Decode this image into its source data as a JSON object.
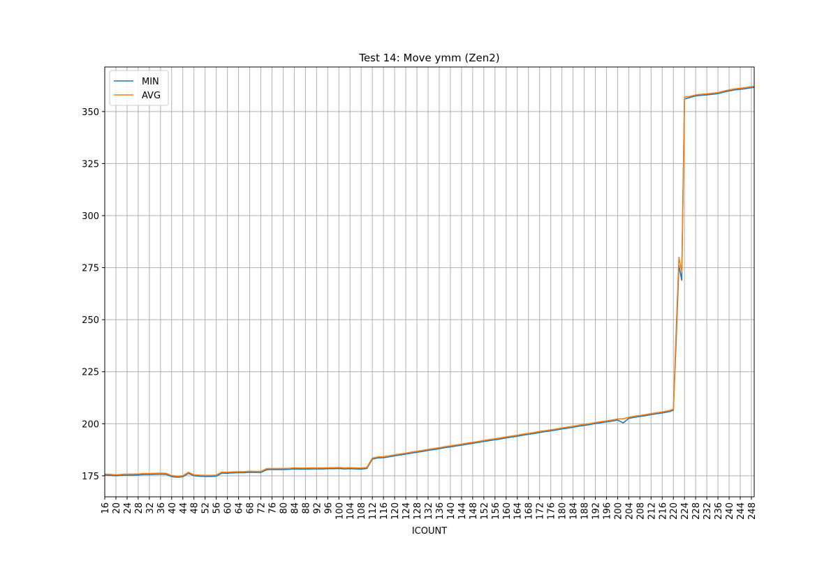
{
  "chart_data": {
    "type": "line",
    "title": "Test 14: Move ymm (Zen2)",
    "xlabel": "ICOUNT",
    "x": [
      16,
      18,
      20,
      22,
      24,
      26,
      28,
      30,
      32,
      34,
      36,
      38,
      40,
      42,
      44,
      46,
      48,
      50,
      52,
      54,
      56,
      58,
      60,
      62,
      64,
      66,
      68,
      70,
      72,
      74,
      76,
      78,
      80,
      82,
      84,
      86,
      88,
      90,
      92,
      94,
      96,
      98,
      100,
      102,
      104,
      106,
      108,
      110,
      112,
      114,
      116,
      118,
      120,
      122,
      124,
      126,
      128,
      130,
      132,
      134,
      136,
      138,
      140,
      142,
      144,
      146,
      148,
      150,
      152,
      154,
      156,
      158,
      160,
      162,
      164,
      166,
      168,
      170,
      172,
      174,
      176,
      178,
      180,
      182,
      184,
      186,
      188,
      190,
      192,
      194,
      196,
      198,
      200,
      202,
      204,
      206,
      208,
      210,
      212,
      214,
      216,
      218,
      219,
      220,
      221,
      222,
      223,
      224,
      226,
      228,
      230,
      232,
      234,
      236,
      238,
      240,
      242,
      244,
      246,
      248,
      249
    ],
    "series": [
      {
        "name": "MIN",
        "color": "#1f77b4",
        "values": [
          175.3,
          175.2,
          175.0,
          175.2,
          175.3,
          175.3,
          175.4,
          175.6,
          175.6,
          175.7,
          175.8,
          175.7,
          174.6,
          174.3,
          174.5,
          176.2,
          175.0,
          174.8,
          174.7,
          174.7,
          174.8,
          176.3,
          176.2,
          176.4,
          176.5,
          176.5,
          176.7,
          176.6,
          176.6,
          177.9,
          178.0,
          178.0,
          178.0,
          178.1,
          178.3,
          178.2,
          178.2,
          178.3,
          178.3,
          178.3,
          178.4,
          178.4,
          178.5,
          178.3,
          178.4,
          178.3,
          178.2,
          178.5,
          183.0,
          183.6,
          183.7,
          184.1,
          184.6,
          185.0,
          185.4,
          185.9,
          186.3,
          186.7,
          187.2,
          187.6,
          188.0,
          188.5,
          188.9,
          189.3,
          189.7,
          190.2,
          190.6,
          191.0,
          191.5,
          191.9,
          192.3,
          192.7,
          193.2,
          193.6,
          194.0,
          194.5,
          194.9,
          195.3,
          195.8,
          196.2,
          196.6,
          197.0,
          197.5,
          197.9,
          198.3,
          198.8,
          199.2,
          199.6,
          200.1,
          200.5,
          200.9,
          201.3,
          201.8,
          200.4,
          202.6,
          203.1,
          203.5,
          203.9,
          204.4,
          204.8,
          205.2,
          205.7,
          206.0,
          206.5,
          240.0,
          276.0,
          269.0,
          356.0,
          356.8,
          357.5,
          357.8,
          358.0,
          358.3,
          358.6,
          359.3,
          359.9,
          360.4,
          360.7,
          361.0,
          361.5,
          361.6
        ]
      },
      {
        "name": "AVG",
        "color": "#ff7f0e",
        "values": [
          175.8,
          175.7,
          175.5,
          175.7,
          175.8,
          175.8,
          175.9,
          176.1,
          176.1,
          176.2,
          176.3,
          176.2,
          175.1,
          174.8,
          175.0,
          176.7,
          175.5,
          175.3,
          175.2,
          175.2,
          175.3,
          176.8,
          176.7,
          176.9,
          177.0,
          177.0,
          177.2,
          177.1,
          177.1,
          178.4,
          178.5,
          178.5,
          178.5,
          178.6,
          178.8,
          178.7,
          178.7,
          178.8,
          178.8,
          178.8,
          178.9,
          178.9,
          179.0,
          178.8,
          178.9,
          178.8,
          178.7,
          179.0,
          183.5,
          184.1,
          184.2,
          184.6,
          185.1,
          185.5,
          185.9,
          186.4,
          186.8,
          187.2,
          187.7,
          188.1,
          188.5,
          189.0,
          189.4,
          189.8,
          190.2,
          190.7,
          191.1,
          191.5,
          192.0,
          192.4,
          192.8,
          193.2,
          193.7,
          194.1,
          194.5,
          195.0,
          195.4,
          195.8,
          196.3,
          196.7,
          197.1,
          197.5,
          198.0,
          198.4,
          198.8,
          199.3,
          199.7,
          200.1,
          200.6,
          201.0,
          201.4,
          201.8,
          202.3,
          202.4,
          203.1,
          203.6,
          204.0,
          204.4,
          204.9,
          205.3,
          205.7,
          206.2,
          206.5,
          207.0,
          245.0,
          280.0,
          273.0,
          357.0,
          357.3,
          358.0,
          358.3,
          358.5,
          358.8,
          359.1,
          359.8,
          360.4,
          360.9,
          361.2,
          361.5,
          362.0,
          362.1
        ]
      }
    ],
    "xlim": [
      16,
      249
    ],
    "xticks": [
      16,
      20,
      24,
      28,
      32,
      36,
      40,
      44,
      48,
      52,
      56,
      60,
      64,
      68,
      72,
      76,
      80,
      84,
      88,
      92,
      96,
      100,
      104,
      108,
      112,
      116,
      120,
      124,
      128,
      132,
      136,
      140,
      144,
      148,
      152,
      156,
      160,
      164,
      168,
      172,
      176,
      180,
      184,
      188,
      192,
      196,
      200,
      204,
      208,
      212,
      216,
      220,
      224,
      228,
      232,
      236,
      240,
      244,
      248
    ],
    "ylim": [
      164.9,
      371.4
    ],
    "yticks": [
      175,
      200,
      225,
      250,
      275,
      300,
      325,
      350
    ],
    "grid": true,
    "legend": "upper left"
  }
}
